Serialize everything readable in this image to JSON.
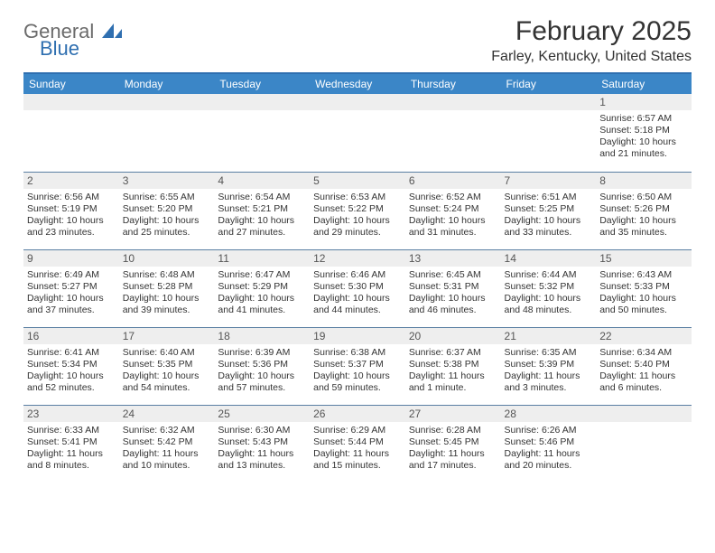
{
  "logo": {
    "text_gray": "General",
    "text_blue": "Blue"
  },
  "header": {
    "title": "February 2025",
    "location": "Farley, Kentucky, United States"
  },
  "colors": {
    "header_bg": "#3b86c7",
    "header_text": "#ffffff",
    "rule": "#2f6fb0",
    "row_border": "#5a7fa3",
    "daynum_bg": "#eeeeee",
    "logo_gray": "#6b6b6b",
    "logo_blue": "#2f6fb0"
  },
  "day_labels": [
    "Sunday",
    "Monday",
    "Tuesday",
    "Wednesday",
    "Thursday",
    "Friday",
    "Saturday"
  ],
  "weeks": [
    [
      {
        "n": "",
        "sr": "",
        "ss": "",
        "dl": ""
      },
      {
        "n": "",
        "sr": "",
        "ss": "",
        "dl": ""
      },
      {
        "n": "",
        "sr": "",
        "ss": "",
        "dl": ""
      },
      {
        "n": "",
        "sr": "",
        "ss": "",
        "dl": ""
      },
      {
        "n": "",
        "sr": "",
        "ss": "",
        "dl": ""
      },
      {
        "n": "",
        "sr": "",
        "ss": "",
        "dl": ""
      },
      {
        "n": "1",
        "sr": "Sunrise: 6:57 AM",
        "ss": "Sunset: 5:18 PM",
        "dl": "Daylight: 10 hours and 21 minutes."
      }
    ],
    [
      {
        "n": "2",
        "sr": "Sunrise: 6:56 AM",
        "ss": "Sunset: 5:19 PM",
        "dl": "Daylight: 10 hours and 23 minutes."
      },
      {
        "n": "3",
        "sr": "Sunrise: 6:55 AM",
        "ss": "Sunset: 5:20 PM",
        "dl": "Daylight: 10 hours and 25 minutes."
      },
      {
        "n": "4",
        "sr": "Sunrise: 6:54 AM",
        "ss": "Sunset: 5:21 PM",
        "dl": "Daylight: 10 hours and 27 minutes."
      },
      {
        "n": "5",
        "sr": "Sunrise: 6:53 AM",
        "ss": "Sunset: 5:22 PM",
        "dl": "Daylight: 10 hours and 29 minutes."
      },
      {
        "n": "6",
        "sr": "Sunrise: 6:52 AM",
        "ss": "Sunset: 5:24 PM",
        "dl": "Daylight: 10 hours and 31 minutes."
      },
      {
        "n": "7",
        "sr": "Sunrise: 6:51 AM",
        "ss": "Sunset: 5:25 PM",
        "dl": "Daylight: 10 hours and 33 minutes."
      },
      {
        "n": "8",
        "sr": "Sunrise: 6:50 AM",
        "ss": "Sunset: 5:26 PM",
        "dl": "Daylight: 10 hours and 35 minutes."
      }
    ],
    [
      {
        "n": "9",
        "sr": "Sunrise: 6:49 AM",
        "ss": "Sunset: 5:27 PM",
        "dl": "Daylight: 10 hours and 37 minutes."
      },
      {
        "n": "10",
        "sr": "Sunrise: 6:48 AM",
        "ss": "Sunset: 5:28 PM",
        "dl": "Daylight: 10 hours and 39 minutes."
      },
      {
        "n": "11",
        "sr": "Sunrise: 6:47 AM",
        "ss": "Sunset: 5:29 PM",
        "dl": "Daylight: 10 hours and 41 minutes."
      },
      {
        "n": "12",
        "sr": "Sunrise: 6:46 AM",
        "ss": "Sunset: 5:30 PM",
        "dl": "Daylight: 10 hours and 44 minutes."
      },
      {
        "n": "13",
        "sr": "Sunrise: 6:45 AM",
        "ss": "Sunset: 5:31 PM",
        "dl": "Daylight: 10 hours and 46 minutes."
      },
      {
        "n": "14",
        "sr": "Sunrise: 6:44 AM",
        "ss": "Sunset: 5:32 PM",
        "dl": "Daylight: 10 hours and 48 minutes."
      },
      {
        "n": "15",
        "sr": "Sunrise: 6:43 AM",
        "ss": "Sunset: 5:33 PM",
        "dl": "Daylight: 10 hours and 50 minutes."
      }
    ],
    [
      {
        "n": "16",
        "sr": "Sunrise: 6:41 AM",
        "ss": "Sunset: 5:34 PM",
        "dl": "Daylight: 10 hours and 52 minutes."
      },
      {
        "n": "17",
        "sr": "Sunrise: 6:40 AM",
        "ss": "Sunset: 5:35 PM",
        "dl": "Daylight: 10 hours and 54 minutes."
      },
      {
        "n": "18",
        "sr": "Sunrise: 6:39 AM",
        "ss": "Sunset: 5:36 PM",
        "dl": "Daylight: 10 hours and 57 minutes."
      },
      {
        "n": "19",
        "sr": "Sunrise: 6:38 AM",
        "ss": "Sunset: 5:37 PM",
        "dl": "Daylight: 10 hours and 59 minutes."
      },
      {
        "n": "20",
        "sr": "Sunrise: 6:37 AM",
        "ss": "Sunset: 5:38 PM",
        "dl": "Daylight: 11 hours and 1 minute."
      },
      {
        "n": "21",
        "sr": "Sunrise: 6:35 AM",
        "ss": "Sunset: 5:39 PM",
        "dl": "Daylight: 11 hours and 3 minutes."
      },
      {
        "n": "22",
        "sr": "Sunrise: 6:34 AM",
        "ss": "Sunset: 5:40 PM",
        "dl": "Daylight: 11 hours and 6 minutes."
      }
    ],
    [
      {
        "n": "23",
        "sr": "Sunrise: 6:33 AM",
        "ss": "Sunset: 5:41 PM",
        "dl": "Daylight: 11 hours and 8 minutes."
      },
      {
        "n": "24",
        "sr": "Sunrise: 6:32 AM",
        "ss": "Sunset: 5:42 PM",
        "dl": "Daylight: 11 hours and 10 minutes."
      },
      {
        "n": "25",
        "sr": "Sunrise: 6:30 AM",
        "ss": "Sunset: 5:43 PM",
        "dl": "Daylight: 11 hours and 13 minutes."
      },
      {
        "n": "26",
        "sr": "Sunrise: 6:29 AM",
        "ss": "Sunset: 5:44 PM",
        "dl": "Daylight: 11 hours and 15 minutes."
      },
      {
        "n": "27",
        "sr": "Sunrise: 6:28 AM",
        "ss": "Sunset: 5:45 PM",
        "dl": "Daylight: 11 hours and 17 minutes."
      },
      {
        "n": "28",
        "sr": "Sunrise: 6:26 AM",
        "ss": "Sunset: 5:46 PM",
        "dl": "Daylight: 11 hours and 20 minutes."
      },
      {
        "n": "",
        "sr": "",
        "ss": "",
        "dl": ""
      }
    ]
  ]
}
